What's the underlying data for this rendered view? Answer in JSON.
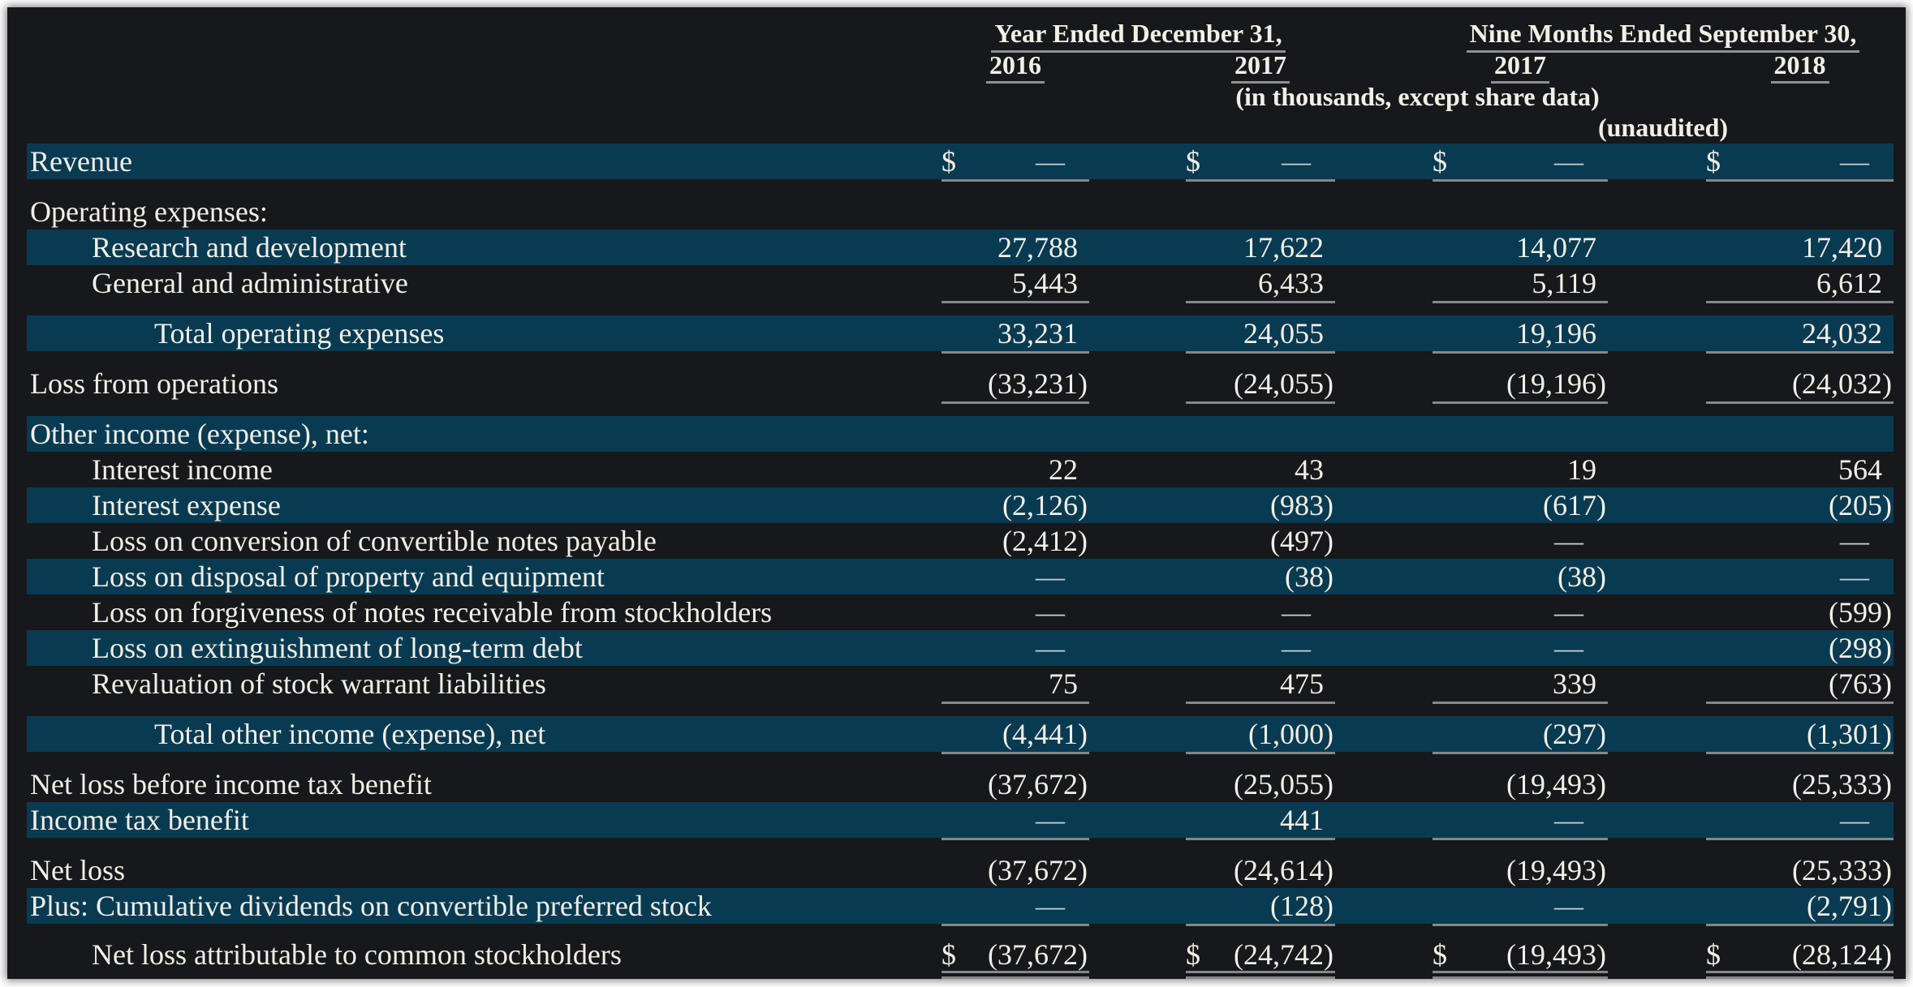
{
  "table": {
    "colors": {
      "page_background": "#ffffff",
      "sheet_background": "#17181b",
      "row_highlight": "#083b52",
      "text": "#f2efe6",
      "rule_line": "#85878a"
    },
    "header": {
      "group1_title": "Year Ended December 31,",
      "group2_title": "Nine Months Ended September 30,",
      "columns": [
        "2016",
        "2017",
        "2017",
        "2018"
      ],
      "note_units": "(in thousands, except share data)",
      "note_unaudited": "(unaudited)"
    },
    "rows": [
      {
        "label": "Revenue",
        "indent": 0,
        "hl": true,
        "dollar": true,
        "underline": "single",
        "values": [
          "—",
          "—",
          "—",
          "—"
        ]
      },
      {
        "type": "spacer"
      },
      {
        "label": "Operating expenses:",
        "indent": 0,
        "hl": false,
        "values": [
          "",
          "",
          "",
          ""
        ]
      },
      {
        "label": "Research and development",
        "indent": 1,
        "hl": true,
        "values": [
          "27,788",
          "17,622",
          "14,077",
          "17,420"
        ]
      },
      {
        "label": "General and administrative",
        "indent": 1,
        "hl": false,
        "underline": "single",
        "values": [
          "5,443",
          "6,433",
          "5,119",
          "6,612"
        ]
      },
      {
        "type": "spacer"
      },
      {
        "label": "Total operating expenses",
        "indent": 2,
        "hl": true,
        "underline": "single",
        "values": [
          "33,231",
          "24,055",
          "19,196",
          "24,032"
        ]
      },
      {
        "type": "spacer"
      },
      {
        "label": "Loss from operations",
        "indent": 0,
        "hl": false,
        "underline": "single",
        "values": [
          "(33,231)",
          "(24,055)",
          "(19,196)",
          "(24,032)"
        ]
      },
      {
        "type": "spacer"
      },
      {
        "label": "Other income (expense), net:",
        "indent": 0,
        "hl": true,
        "values": [
          "",
          "",
          "",
          ""
        ]
      },
      {
        "label": "Interest income",
        "indent": 1,
        "hl": false,
        "values": [
          "22",
          "43",
          "19",
          "564"
        ]
      },
      {
        "label": "Interest expense",
        "indent": 1,
        "hl": true,
        "values": [
          "(2,126)",
          "(983)",
          "(617)",
          "(205)"
        ]
      },
      {
        "label": "Loss on conversion of convertible notes payable",
        "indent": 1,
        "hl": false,
        "values": [
          "(2,412)",
          "(497)",
          "—",
          "—"
        ]
      },
      {
        "label": "Loss on disposal of property and equipment",
        "indent": 1,
        "hl": true,
        "values": [
          "—",
          "(38)",
          "(38)",
          "—"
        ]
      },
      {
        "label": "Loss on forgiveness of notes receivable from stockholders",
        "indent": 1,
        "hl": false,
        "values": [
          "—",
          "—",
          "—",
          "(599)"
        ]
      },
      {
        "label": "Loss on extinguishment of long-term debt",
        "indent": 1,
        "hl": true,
        "values": [
          "—",
          "—",
          "—",
          "(298)"
        ]
      },
      {
        "label": "Revaluation of stock warrant liabilities",
        "indent": 1,
        "hl": false,
        "underline": "single",
        "values": [
          "75",
          "475",
          "339",
          "(763)"
        ]
      },
      {
        "type": "spacer"
      },
      {
        "label": "Total other income (expense), net",
        "indent": 2,
        "hl": true,
        "underline": "single",
        "values": [
          "(4,441)",
          "(1,000)",
          "(297)",
          "(1,301)"
        ]
      },
      {
        "type": "spacer"
      },
      {
        "label": "Net loss before income tax benefit",
        "indent": 0,
        "hl": false,
        "values": [
          "(37,672)",
          "(25,055)",
          "(19,493)",
          "(25,333)"
        ]
      },
      {
        "label": "Income tax benefit",
        "indent": 0,
        "hl": true,
        "underline": "single",
        "values": [
          "—",
          "441",
          "—",
          "—"
        ]
      },
      {
        "type": "spacer"
      },
      {
        "label": "Net loss",
        "indent": 0,
        "hl": false,
        "values": [
          "(37,672)",
          "(24,614)",
          "(19,493)",
          "(25,333)"
        ]
      },
      {
        "label": "Plus: Cumulative dividends on convertible preferred stock",
        "indent": 0,
        "hl": true,
        "underline": "single",
        "values": [
          "—",
          "(128)",
          "—",
          "(2,791)"
        ]
      },
      {
        "type": "spacer"
      },
      {
        "label": "Net loss attributable to common stockholders",
        "indent": 1,
        "hl": false,
        "dollar": true,
        "underline": "double",
        "values": [
          "(37,672)",
          "(24,742)",
          "(19,493)",
          "(28,124)"
        ]
      }
    ]
  }
}
